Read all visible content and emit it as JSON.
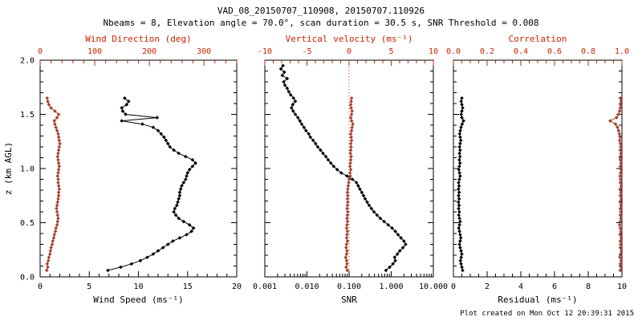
{
  "title": "VAD_08_20150707_110908, 20150707.110926",
  "subtitle": "Nbeams = 8, Elevation angle = 70.0°, scan duration = 30.5 s, SNR Threshold = 0.008",
  "footer": "Plot created on Mon Oct 12 20:39:31 2015",
  "colors": {
    "black": "#000000",
    "axis_red": "#cc2200",
    "series_red": "#a8432e"
  },
  "chart_data": {
    "type": "line",
    "title": "VAD_08_20150707_110908, 20150707.110926",
    "y_axis": {
      "label": "z (km AGL)",
      "range": [
        0,
        2
      ],
      "ticks": [
        0,
        0.5,
        1,
        1.5,
        2
      ],
      "tick_labels": [
        "0.0",
        "0.5",
        "1.0",
        "1.5",
        "2.0"
      ],
      "minor_step": 0.1
    },
    "panels": [
      {
        "name": "wind",
        "show_y_labels": true,
        "bottom": {
          "label": "Wind Speed (ms⁻¹)",
          "scale": "linear",
          "range": [
            0,
            20
          ],
          "ticks": [
            0,
            5,
            10,
            15,
            20
          ],
          "tick_labels": [
            "0",
            "5",
            "10",
            "15",
            "20"
          ],
          "minor_step": 1
        },
        "top": {
          "label": "Wind Direction (deg)",
          "range": [
            0,
            360
          ],
          "ticks": [
            0,
            100,
            200,
            300
          ],
          "tick_labels": [
            "0",
            "100",
            "200",
            "300"
          ],
          "minor_step": 20
        },
        "series": [
          {
            "name": "wind-speed",
            "axis": "bottom",
            "color_key": "black",
            "z": [
              0.06,
              0.09,
              0.12,
              0.15,
              0.18,
              0.21,
              0.24,
              0.27,
              0.3,
              0.33,
              0.36,
              0.39,
              0.42,
              0.45,
              0.48,
              0.51,
              0.54,
              0.57,
              0.6,
              0.63,
              0.66,
              0.69,
              0.72,
              0.75,
              0.78,
              0.81,
              0.84,
              0.87,
              0.9,
              0.93,
              0.96,
              0.99,
              1.02,
              1.05,
              1.08,
              1.11,
              1.14,
              1.17,
              1.2,
              1.23,
              1.26,
              1.29,
              1.32,
              1.35,
              1.38,
              1.41,
              1.44,
              1.47,
              1.5,
              1.53,
              1.56,
              1.59,
              1.62,
              1.65
            ],
            "values": [
              6.9,
              8.2,
              9.3,
              10.2,
              10.9,
              11.5,
              12.0,
              12.5,
              13.0,
              13.5,
              14.2,
              14.9,
              15.4,
              15.6,
              15.2,
              14.6,
              14.1,
              13.8,
              13.6,
              13.7,
              13.9,
              14.0,
              14.1,
              14.2,
              14.2,
              14.3,
              14.4,
              14.6,
              14.8,
              14.9,
              15.0,
              15.2,
              15.5,
              15.8,
              15.5,
              14.8,
              14.1,
              13.6,
              13.2,
              13.0,
              12.8,
              12.6,
              12.3,
              12.0,
              11.5,
              10.4,
              8.3,
              11.9,
              8.7,
              8.4,
              8.3,
              8.8,
              9.0,
              8.6
            ]
          },
          {
            "name": "wind-direction",
            "axis": "top",
            "color_key": "series_red",
            "z": [
              0.06,
              0.09,
              0.12,
              0.15,
              0.18,
              0.21,
              0.24,
              0.27,
              0.3,
              0.33,
              0.36,
              0.39,
              0.42,
              0.45,
              0.48,
              0.51,
              0.54,
              0.57,
              0.6,
              0.63,
              0.66,
              0.69,
              0.72,
              0.75,
              0.78,
              0.81,
              0.84,
              0.87,
              0.9,
              0.93,
              0.96,
              0.99,
              1.02,
              1.05,
              1.08,
              1.11,
              1.14,
              1.17,
              1.2,
              1.23,
              1.26,
              1.29,
              1.32,
              1.35,
              1.38,
              1.41,
              1.44,
              1.47,
              1.5,
              1.53,
              1.56,
              1.59,
              1.62,
              1.65
            ],
            "values": [
              12,
              14,
              13,
              15,
              16,
              18,
              19,
              20,
              22,
              23,
              25,
              26,
              28,
              29,
              31,
              32,
              33,
              32,
              31,
              30,
              31,
              32,
              33,
              34,
              34,
              35,
              34,
              33,
              33,
              32,
              33,
              34,
              35,
              34,
              33,
              32,
              33,
              34,
              35,
              36,
              35,
              34,
              33,
              31,
              29,
              27,
              26,
              31,
              34,
              27,
              20,
              16,
              14,
              13
            ]
          }
        ]
      },
      {
        "name": "snr",
        "show_y_labels": false,
        "zero_line_top": 0,
        "bottom": {
          "label": "SNR",
          "scale": "log",
          "range": [
            0.001,
            10
          ],
          "ticks": [
            0.001,
            0.01,
            0.1,
            1,
            10
          ],
          "tick_labels": [
            "0.001",
            "0.010",
            "0.100",
            "1.000",
            "10.000"
          ]
        },
        "top": {
          "label": "Vertical velocity (ms⁻¹)",
          "range": [
            -10,
            10
          ],
          "ticks": [
            -10,
            -5,
            0,
            5,
            10
          ],
          "tick_labels": [
            "-10",
            "-5",
            "0",
            "5",
            "10"
          ],
          "minor_step": 1
        },
        "series": [
          {
            "name": "snr",
            "axis": "bottom",
            "color_key": "black",
            "z": [
              0.06,
              0.09,
              0.12,
              0.15,
              0.18,
              0.21,
              0.24,
              0.27,
              0.3,
              0.33,
              0.36,
              0.39,
              0.42,
              0.45,
              0.48,
              0.51,
              0.54,
              0.57,
              0.6,
              0.63,
              0.66,
              0.69,
              0.72,
              0.75,
              0.78,
              0.81,
              0.84,
              0.87,
              0.9,
              0.93,
              0.96,
              0.99,
              1.02,
              1.05,
              1.08,
              1.11,
              1.14,
              1.17,
              1.2,
              1.23,
              1.26,
              1.29,
              1.32,
              1.35,
              1.38,
              1.41,
              1.44,
              1.47,
              1.5,
              1.53,
              1.56,
              1.59,
              1.62,
              1.65,
              1.68,
              1.71,
              1.74,
              1.77,
              1.8,
              1.83,
              1.86,
              1.89,
              1.92,
              1.95
            ],
            "values": [
              0.75,
              0.92,
              1.1,
              1.25,
              1.2,
              1.4,
              1.6,
              1.9,
              2.2,
              2.0,
              1.7,
              1.45,
              1.25,
              1.05,
              0.85,
              0.68,
              0.55,
              0.46,
              0.39,
              0.34,
              0.3,
              0.27,
              0.24,
              0.22,
              0.2,
              0.18,
              0.165,
              0.15,
              0.12,
              0.09,
              0.065,
              0.052,
              0.043,
              0.037,
              0.032,
              0.028,
              0.024,
              0.021,
              0.018,
              0.016,
              0.014,
              0.012,
              0.011,
              0.0095,
              0.0085,
              0.0075,
              0.0068,
              0.0061,
              0.0053,
              0.0047,
              0.0043,
              0.0046,
              0.0053,
              0.0048,
              0.0041,
              0.0037,
              0.0034,
              0.003,
              0.0028,
              0.0034,
              0.0026,
              0.0029,
              0.0024,
              0.0027
            ]
          },
          {
            "name": "vertical-velocity",
            "axis": "top",
            "color_key": "series_red",
            "z": [
              0.06,
              0.09,
              0.12,
              0.15,
              0.18,
              0.21,
              0.24,
              0.27,
              0.3,
              0.33,
              0.36,
              0.39,
              0.42,
              0.45,
              0.48,
              0.51,
              0.54,
              0.57,
              0.6,
              0.63,
              0.66,
              0.69,
              0.72,
              0.75,
              0.78,
              0.81,
              0.84,
              0.87,
              0.9,
              0.93,
              0.96,
              0.99,
              1.02,
              1.05,
              1.08,
              1.11,
              1.14,
              1.17,
              1.2,
              1.23,
              1.26,
              1.29,
              1.32,
              1.35,
              1.38,
              1.41,
              1.44,
              1.47,
              1.5,
              1.53,
              1.56,
              1.59,
              1.62,
              1.65
            ],
            "values": [
              -0.2,
              -0.35,
              -0.25,
              -0.3,
              -0.4,
              -0.3,
              -0.25,
              -0.35,
              -0.3,
              -0.2,
              -0.3,
              -0.25,
              -0.2,
              -0.3,
              -0.25,
              -0.2,
              -0.25,
              -0.2,
              -0.15,
              -0.25,
              -0.2,
              -0.15,
              -0.2,
              -0.15,
              -0.2,
              -0.15,
              -0.1,
              -0.05,
              0.0,
              0.15,
              0.1,
              0.2,
              0.1,
              0.15,
              0.2,
              0.25,
              0.15,
              0.2,
              0.25,
              0.2,
              0.3,
              0.25,
              0.2,
              0.3,
              0.35,
              0.45,
              0.3,
              0.2,
              0.3,
              0.35,
              0.25,
              0.2,
              0.25,
              0.3
            ]
          }
        ]
      },
      {
        "name": "residual",
        "show_y_labels": false,
        "bottom": {
          "label": "Residual (ms⁻¹)",
          "scale": "linear",
          "range": [
            0,
            10
          ],
          "ticks": [
            0,
            2,
            4,
            6,
            8,
            10
          ],
          "tick_labels": [
            "0",
            "2",
            "4",
            "6",
            "8",
            "10"
          ],
          "minor_step": 0.5
        },
        "top": {
          "label": "Correlation",
          "range": [
            0,
            1
          ],
          "ticks": [
            0,
            0.2,
            0.4,
            0.6,
            0.8,
            1
          ],
          "tick_labels": [
            "0.0",
            "0.2",
            "0.4",
            "0.6",
            "0.8",
            "1.0"
          ],
          "minor_step": 0.05
        },
        "series": [
          {
            "name": "residual",
            "axis": "bottom",
            "color_key": "black",
            "z": [
              0.06,
              0.09,
              0.12,
              0.15,
              0.18,
              0.21,
              0.24,
              0.27,
              0.3,
              0.33,
              0.36,
              0.39,
              0.42,
              0.45,
              0.48,
              0.51,
              0.54,
              0.57,
              0.6,
              0.63,
              0.66,
              0.69,
              0.72,
              0.75,
              0.78,
              0.81,
              0.84,
              0.87,
              0.9,
              0.93,
              0.96,
              0.99,
              1.02,
              1.05,
              1.08,
              1.11,
              1.14,
              1.17,
              1.2,
              1.23,
              1.26,
              1.29,
              1.32,
              1.35,
              1.38,
              1.41,
              1.44,
              1.47,
              1.5,
              1.53,
              1.56,
              1.59,
              1.62,
              1.65
            ],
            "values": [
              0.55,
              0.5,
              0.45,
              0.42,
              0.46,
              0.5,
              0.45,
              0.4,
              0.36,
              0.4,
              0.44,
              0.4,
              0.36,
              0.32,
              0.36,
              0.4,
              0.36,
              0.32,
              0.35,
              0.31,
              0.34,
              0.3,
              0.34,
              0.31,
              0.34,
              0.3,
              0.34,
              0.31,
              0.35,
              0.4,
              0.36,
              0.32,
              0.35,
              0.39,
              0.35,
              0.39,
              0.36,
              0.4,
              0.36,
              0.4,
              0.44,
              0.4,
              0.37,
              0.41,
              0.45,
              0.52,
              0.6,
              0.5,
              0.46,
              0.5,
              0.55,
              0.5,
              0.46,
              0.5
            ]
          },
          {
            "name": "correlation",
            "axis": "top",
            "color_key": "series_red",
            "z": [
              0.06,
              0.09,
              0.12,
              0.15,
              0.18,
              0.21,
              0.24,
              0.27,
              0.3,
              0.33,
              0.36,
              0.39,
              0.42,
              0.45,
              0.48,
              0.51,
              0.54,
              0.57,
              0.6,
              0.63,
              0.66,
              0.69,
              0.72,
              0.75,
              0.78,
              0.81,
              0.84,
              0.87,
              0.9,
              0.93,
              0.96,
              0.99,
              1.02,
              1.05,
              1.08,
              1.11,
              1.14,
              1.17,
              1.2,
              1.23,
              1.26,
              1.29,
              1.32,
              1.35,
              1.38,
              1.41,
              1.44,
              1.47,
              1.5,
              1.53,
              1.56,
              1.59,
              1.62,
              1.65
            ],
            "values": [
              0.99,
              0.995,
              0.99,
              0.995,
              0.988,
              0.992,
              0.996,
              0.99,
              0.994,
              0.99,
              0.995,
              0.99,
              0.994,
              0.99,
              0.986,
              0.99,
              0.994,
              0.99,
              0.995,
              0.99,
              0.994,
              0.99,
              0.995,
              0.99,
              0.994,
              0.99,
              0.995,
              0.99,
              0.993,
              0.988,
              0.992,
              0.996,
              0.99,
              0.994,
              0.99,
              0.99,
              0.994,
              0.99,
              0.995,
              0.99,
              0.986,
              0.99,
              0.985,
              0.98,
              0.974,
              0.962,
              0.93,
              0.968,
              0.98,
              0.986,
              0.99,
              0.992,
              0.995,
              0.99
            ]
          }
        ]
      }
    ]
  }
}
